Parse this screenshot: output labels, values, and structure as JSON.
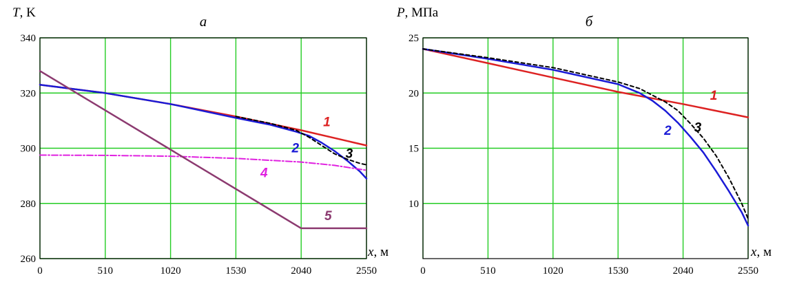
{
  "chart_data": [
    {
      "type": "line",
      "panel_label": "а",
      "ylabel": "T",
      "yunit": ", K",
      "xlabel": "x",
      "xunit": ", м",
      "xlim": [
        0,
        2550
      ],
      "ylim": [
        260,
        340
      ],
      "xticks": [
        "0",
        "510",
        "1020",
        "1530",
        "2040",
        "2550"
      ],
      "yticks": [
        "260",
        "280",
        "300",
        "320",
        "340"
      ],
      "grid": true,
      "series": [
        {
          "label": "1",
          "color": "#dd2222",
          "dash": "none",
          "width": 2.5,
          "x": [
            0,
            510,
            1020,
            1530,
            2040,
            2550
          ],
          "y": [
            323,
            320,
            316,
            311.5,
            306.5,
            301
          ],
          "label_at": [
            2240,
            308
          ]
        },
        {
          "label": "2",
          "color": "#1a1ad6",
          "dash": "none",
          "width": 2.5,
          "x": [
            0,
            510,
            1020,
            1530,
            1800,
            2000,
            2100,
            2200,
            2300,
            2400,
            2500,
            2550
          ],
          "y": [
            323,
            320,
            316,
            311,
            308.5,
            306,
            304.5,
            302,
            299,
            295.5,
            291.5,
            289
          ],
          "label_at": [
            1995,
            298.5
          ]
        },
        {
          "label": "3",
          "color": "#000000",
          "dash": "5,4",
          "width": 2,
          "x": [
            1530,
            1800,
            2000,
            2100,
            2200,
            2300,
            2400,
            2500,
            2550
          ],
          "y": [
            311.5,
            309,
            306.5,
            304,
            301,
            298,
            296,
            294.5,
            294
          ],
          "label_at": [
            2415,
            296.5
          ]
        },
        {
          "label": "4",
          "color": "#e020e0",
          "dash": "9,3,2,3",
          "width": 2,
          "x": [
            0,
            510,
            1020,
            1530,
            2040,
            2300,
            2550
          ],
          "y": [
            297.5,
            297.4,
            297.1,
            296.3,
            295,
            293.8,
            292
          ],
          "label_at": [
            1750,
            289.5
          ]
        },
        {
          "label": "5",
          "color": "#8c3a70",
          "dash": "none",
          "width": 2.5,
          "x": [
            0,
            2040,
            2550
          ],
          "y": [
            328,
            271,
            271
          ],
          "label_at": [
            2250,
            274
          ]
        }
      ]
    },
    {
      "type": "line",
      "panel_label": "б",
      "ylabel": "P",
      "yunit": ", МПа",
      "xlabel": "x",
      "xunit": ", м",
      "xlim": [
        0,
        2550
      ],
      "ylim": [
        5,
        25
      ],
      "xticks": [
        "0",
        "510",
        "1020",
        "1530",
        "2040",
        "2550"
      ],
      "yticks": [
        "10",
        "15",
        "20",
        "25"
      ],
      "grid": true,
      "series": [
        {
          "label": "1",
          "color": "#dd2222",
          "dash": "none",
          "width": 2.5,
          "x": [
            0,
            510,
            1020,
            1530,
            2040,
            2550
          ],
          "y": [
            24,
            22.7,
            21.4,
            20.1,
            19,
            17.8
          ],
          "label_at": [
            2280,
            19.4
          ]
        },
        {
          "label": "2",
          "color": "#1a1ad6",
          "dash": "none",
          "width": 2.5,
          "x": [
            0,
            510,
            1020,
            1530,
            1700,
            1800,
            1900,
            2000,
            2100,
            2200,
            2300,
            2400,
            2500,
            2550
          ],
          "y": [
            24,
            23.1,
            22.1,
            20.8,
            20,
            19.3,
            18.4,
            17.3,
            16,
            14.6,
            12.9,
            11.1,
            9.2,
            8
          ],
          "label_at": [
            1920,
            16.2
          ]
        },
        {
          "label": "3",
          "color": "#000000",
          "dash": "5,4",
          "width": 2,
          "x": [
            0,
            510,
            1020,
            1530,
            1700,
            1800,
            1900,
            2000,
            2100,
            2200,
            2300,
            2400,
            2500,
            2550
          ],
          "y": [
            24,
            23.2,
            22.3,
            21,
            20.4,
            19.8,
            19.2,
            18.4,
            17.2,
            15.9,
            14.3,
            12.3,
            10,
            8.6
          ],
          "label_at": [
            2155,
            16.5
          ]
        }
      ]
    }
  ]
}
